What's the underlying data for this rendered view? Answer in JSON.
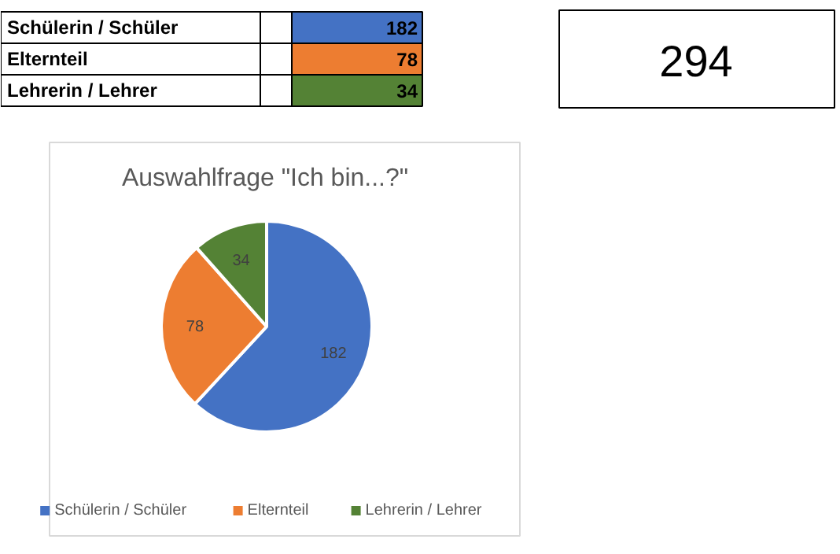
{
  "chart_data": [
    {
      "type": "other",
      "categories": [
        "Schülerin / Schüler",
        "Elternteil",
        "Lehrerin / Lehrer"
      ],
      "values": [
        182,
        78,
        34
      ],
      "data_labels": true,
      "annotations": [
        "294"
      ]
    },
    {
      "type": "pie",
      "title": "Auswahlfrage \"Ich bin...?\"",
      "categories": [
        "Schülerin / Schüler",
        "Elternteil",
        "Lehrerin / Lehrer"
      ],
      "values": [
        182,
        78,
        34
      ],
      "colors": [
        "#4472c4",
        "#ed7d31",
        "#548235"
      ],
      "data_labels": true,
      "legend": "bottom"
    }
  ]
}
